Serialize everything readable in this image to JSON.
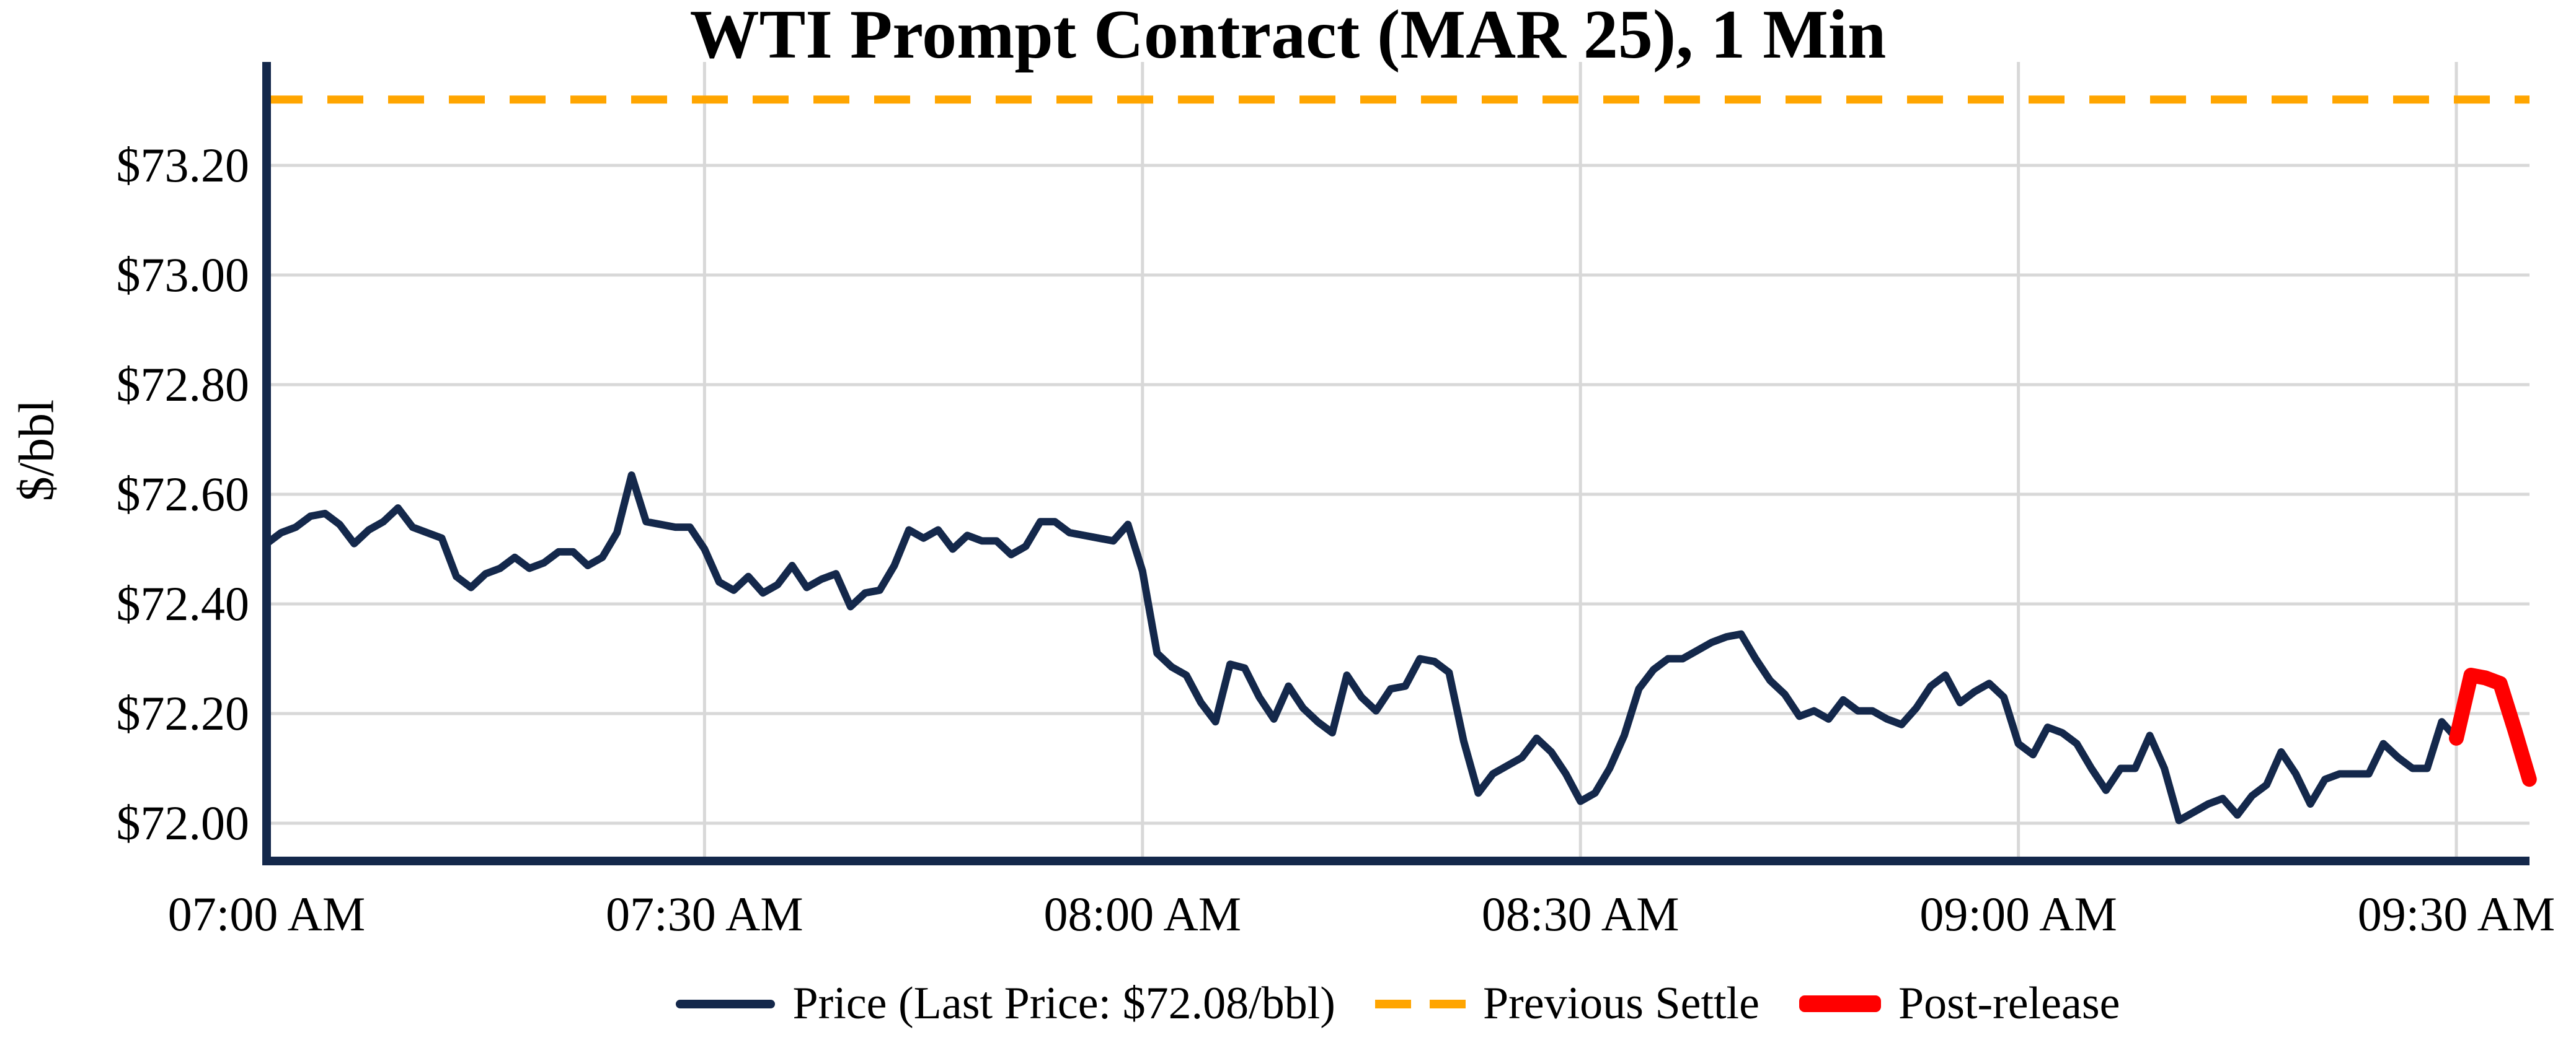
{
  "chart_data": {
    "type": "line",
    "title": "WTI Prompt Contract (MAR 25), 1 Min",
    "xlabel": "",
    "ylabel": "$/bbl",
    "grid": true,
    "legend_position": "bottom-center",
    "colors": {
      "price_line": "#14284b",
      "previous_settle_line": "#ffa500",
      "post_release_line": "#ff0000",
      "gridline": "#d8d8d8",
      "axis": "#14284b",
      "background": "#ffffff"
    },
    "y_axis": {
      "tick_labels": [
        "$73.20",
        "$73.00",
        "$72.80",
        "$72.60",
        "$72.40",
        "$72.20",
        "$72.00"
      ],
      "tick_values": [
        73.2,
        73.0,
        72.8,
        72.6,
        72.4,
        72.2,
        72.0
      ],
      "range": [
        71.93,
        73.39
      ]
    },
    "x_axis": {
      "tick_labels": [
        "07:00 AM",
        "07:30 AM",
        "08:00 AM",
        "08:30 AM",
        "09:00 AM",
        "09:30 AM"
      ],
      "tick_minutes": [
        0,
        30,
        60,
        90,
        120,
        150
      ],
      "range_minutes": [
        0,
        155
      ]
    },
    "previous_settle": 73.32,
    "last_price": 72.08,
    "series": [
      {
        "name": "Price (Last Price: $72.08/bbl)",
        "style": "solid",
        "x_start_minute": 0,
        "interval_minutes": 1,
        "values": [
          72.51,
          72.53,
          72.54,
          72.56,
          72.565,
          72.545,
          72.51,
          72.535,
          72.55,
          72.575,
          72.54,
          72.53,
          72.52,
          72.45,
          72.43,
          72.455,
          72.465,
          72.485,
          72.465,
          72.475,
          72.495,
          72.495,
          72.47,
          72.485,
          72.53,
          72.635,
          72.55,
          72.545,
          72.54,
          72.54,
          72.5,
          72.44,
          72.425,
          72.45,
          72.42,
          72.435,
          72.47,
          72.43,
          72.445,
          72.455,
          72.395,
          72.42,
          72.425,
          72.47,
          72.535,
          72.52,
          72.535,
          72.5,
          72.525,
          72.515,
          72.515,
          72.49,
          72.505,
          72.55,
          72.55,
          72.53,
          72.525,
          72.52,
          72.515,
          72.545,
          72.46,
          72.31,
          72.285,
          72.27,
          72.22,
          72.185,
          72.29,
          72.283,
          72.23,
          72.19,
          72.25,
          72.21,
          72.185,
          72.165,
          72.27,
          72.23,
          72.205,
          72.245,
          72.25,
          72.3,
          72.295,
          72.275,
          72.15,
          72.055,
          72.09,
          72.105,
          72.12,
          72.155,
          72.13,
          72.09,
          72.04,
          72.055,
          72.1,
          72.16,
          72.245,
          72.28,
          72.3,
          72.3,
          72.315,
          72.33,
          72.34,
          72.345,
          72.3,
          72.26,
          72.235,
          72.195,
          72.205,
          72.19,
          72.225,
          72.205,
          72.205,
          72.19,
          72.18,
          72.21,
          72.25,
          72.27,
          72.22,
          72.24,
          72.255,
          72.23,
          72.145,
          72.125,
          72.175,
          72.165,
          72.145,
          72.1,
          72.06,
          72.1,
          72.1,
          72.16,
          72.1,
          72.005,
          72.02,
          72.035,
          72.045,
          72.015,
          72.05,
          72.07,
          72.13,
          72.09,
          72.035,
          72.08,
          72.09,
          72.09,
          72.09,
          72.145,
          72.12,
          72.1,
          72.1,
          72.185,
          72.155
        ]
      },
      {
        "name": "Previous Settle",
        "style": "dashed",
        "value": 73.32
      },
      {
        "name": "Post-release",
        "style": "solid-thick",
        "x_start_minute": 150,
        "interval_minutes": 1,
        "values": [
          72.155,
          72.27,
          72.265,
          72.255,
          72.17,
          72.08
        ]
      }
    ],
    "legend": {
      "entries": [
        {
          "label": "Price (Last Price: $72.08/bbl)"
        },
        {
          "label": "Previous Settle"
        },
        {
          "label": "Post-release"
        }
      ]
    }
  }
}
